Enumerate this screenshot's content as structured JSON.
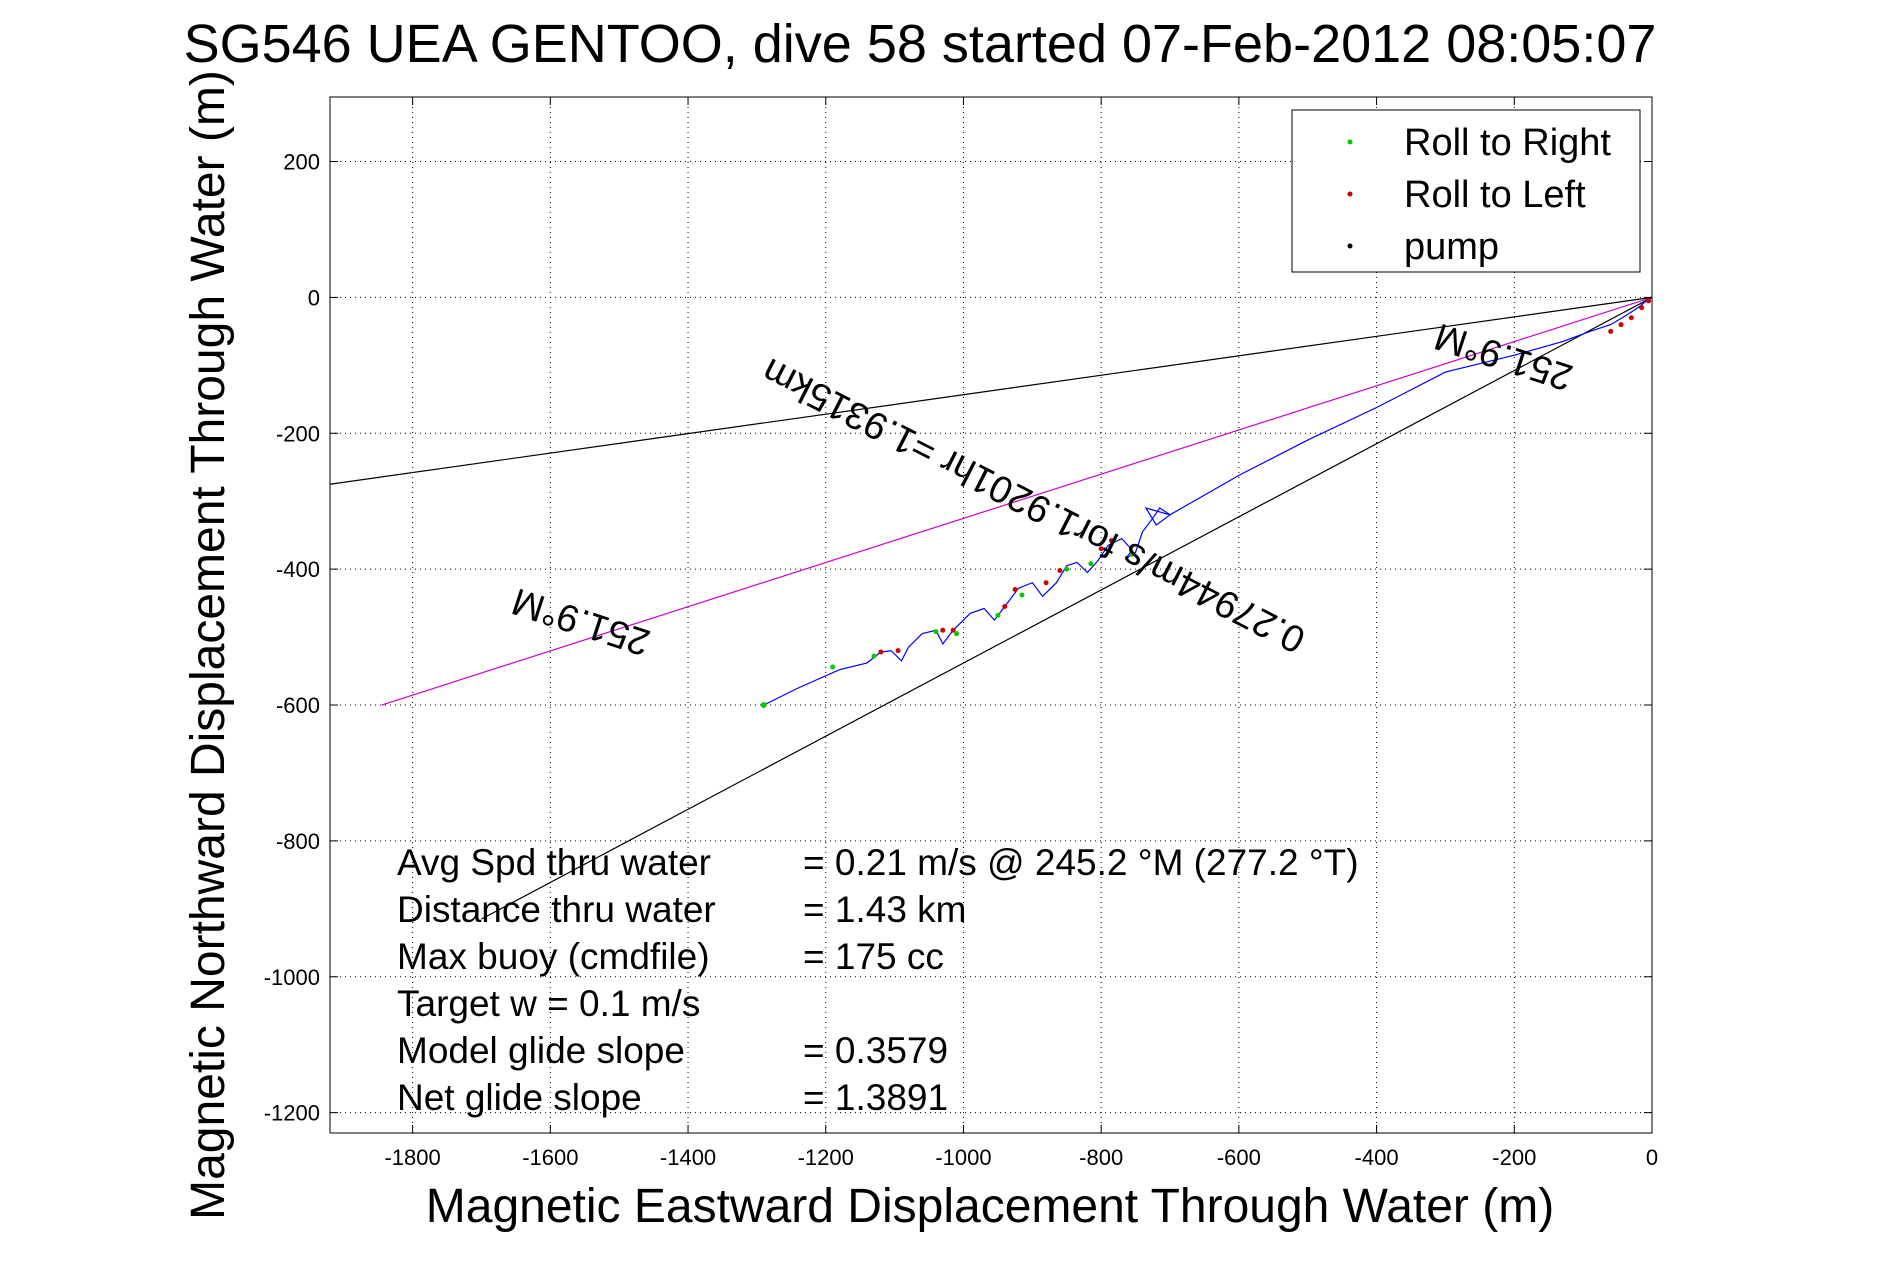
{
  "chart_data": {
    "type": "line",
    "title": "SG546 UEA GENTOO, dive 58 started 07-Feb-2012 08:05:07",
    "xlabel": "Magnetic Eastward Displacement Through Water (m)",
    "ylabel": "Magnetic Northward Displacement Through Water (m)",
    "xlim": [
      -1920,
      0
    ],
    "ylim": [
      -1230,
      295
    ],
    "xticks": [
      -1800,
      -1600,
      -1400,
      -1200,
      -1000,
      -800,
      -600,
      -400,
      -200,
      0
    ],
    "yticks": [
      200,
      0,
      -200,
      -400,
      -600,
      -800,
      -1000,
      -1200
    ],
    "grid": true,
    "legend": {
      "placement": "top-right",
      "entries": [
        {
          "label": "Roll to Right",
          "color": "#00cc00",
          "marker": "dot"
        },
        {
          "label": "Roll to Left",
          "color": "#cc0000",
          "marker": "dot"
        },
        {
          "label": "pump",
          "color": "#000000",
          "marker": "dot"
        }
      ]
    },
    "reference_lines": [
      {
        "name": "upper-bound",
        "color": "#000000",
        "x": [
          0,
          -1920
        ],
        "y": [
          0,
          -275
        ]
      },
      {
        "name": "heading-line",
        "color": "#cc00cc",
        "x": [
          0,
          -1845
        ],
        "y": [
          0,
          -600
        ]
      },
      {
        "name": "lower-bound",
        "color": "#000000",
        "x": [
          0,
          -1700
        ],
        "y": [
          0,
          -915
        ]
      }
    ],
    "line_labels": [
      {
        "text": "251.9°M",
        "x": -1550,
        "y": -460,
        "rotate_deg": 198
      },
      {
        "text": "251.9°M",
        "x": -210,
        "y": -70,
        "rotate_deg": 198
      },
      {
        "text": "0.27944m/s for1.9201hr =1.9315km",
        "x": -890,
        "y": -290,
        "rotate_deg": 207
      }
    ],
    "track": {
      "color": "#0000ff",
      "start": [
        -1290,
        -600
      ],
      "points": [
        [
          -1290,
          -600
        ],
        [
          -1240,
          -575
        ],
        [
          -1180,
          -548
        ],
        [
          -1140,
          -538
        ],
        [
          -1120,
          -522
        ],
        [
          -1105,
          -520
        ],
        [
          -1090,
          -535
        ],
        [
          -1080,
          -515
        ],
        [
          -1060,
          -495
        ],
        [
          -1040,
          -490
        ],
        [
          -1030,
          -510
        ],
        [
          -1015,
          -490
        ],
        [
          -990,
          -465
        ],
        [
          -970,
          -458
        ],
        [
          -955,
          -475
        ],
        [
          -940,
          -455
        ],
        [
          -920,
          -428
        ],
        [
          -900,
          -420
        ],
        [
          -885,
          -440
        ],
        [
          -865,
          -420
        ],
        [
          -850,
          -395
        ],
        [
          -835,
          -390
        ],
        [
          -820,
          -405
        ],
        [
          -805,
          -388
        ],
        [
          -790,
          -365
        ],
        [
          -770,
          -355
        ],
        [
          -755,
          -372
        ],
        [
          -765,
          -385
        ],
        [
          -750,
          -375
        ],
        [
          -740,
          -345
        ],
        [
          -725,
          -325
        ],
        [
          -715,
          -310
        ],
        [
          -700,
          -320
        ],
        [
          -720,
          -335
        ],
        [
          -735,
          -310
        ],
        [
          -700,
          -320
        ],
        [
          -600,
          -262
        ],
        [
          -500,
          -210
        ],
        [
          -400,
          -162
        ],
        [
          -300,
          -110
        ],
        [
          -200,
          -85
        ],
        [
          -130,
          -65
        ],
        [
          -90,
          -50
        ],
        [
          -60,
          -40
        ],
        [
          -40,
          -28
        ],
        [
          -20,
          -15
        ],
        [
          -8,
          -5
        ],
        [
          0,
          0
        ]
      ],
      "roll_right_x": [
        -1290,
        -1190,
        -1130,
        -1040,
        -1010,
        -950,
        -915,
        -850,
        -815,
        -755
      ],
      "roll_right_y": [
        -600,
        -544,
        -528,
        -492,
        -495,
        -468,
        -438,
        -400,
        -392,
        -378
      ],
      "roll_left_x": [
        -1120,
        -1095,
        -1030,
        -1015,
        -940,
        -925,
        -880,
        -860,
        -800,
        -785,
        -60,
        -45,
        -30,
        -15,
        -5
      ],
      "roll_left_y": [
        -522,
        -520,
        -490,
        -490,
        -455,
        -430,
        -420,
        -402,
        -370,
        -358,
        -50,
        -40,
        -30,
        -15,
        -5
      ]
    },
    "stats": [
      {
        "label": "Avg Spd thru water",
        "value": "=  0.21 m/s @ 245.2 °M (277.2 °T)"
      },
      {
        "label": "Distance thru water",
        "value": "=  1.43 km"
      },
      {
        "label": "Max buoy (cmdfile)",
        "value": "= 175 cc"
      },
      {
        "label": "Target w    = 0.1 m/s",
        "value": ""
      },
      {
        "label": "Model glide slope",
        "value": "= 0.3579"
      },
      {
        "label": "Net glide slope",
        "value": "= 1.3891"
      }
    ]
  }
}
